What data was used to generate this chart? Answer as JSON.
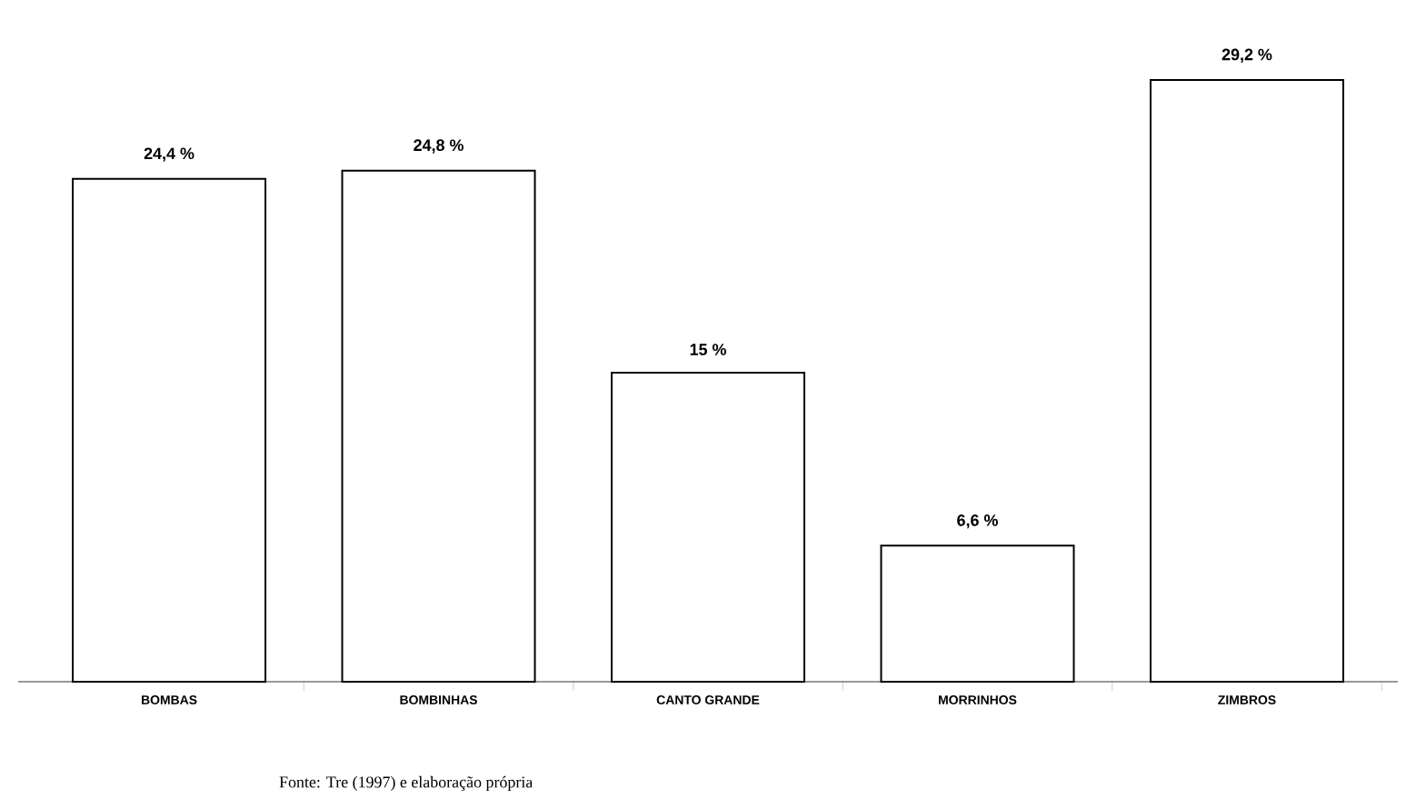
{
  "chart_data": {
    "type": "bar",
    "categories": [
      "BOMBAS",
      "BOMBINHAS",
      "CANTO GRANDE",
      "MORRINHOS",
      "ZIMBROS"
    ],
    "values": [
      24.4,
      24.8,
      15,
      6.6,
      29.2
    ],
    "value_labels": [
      "24,4 %",
      "24,8 %",
      "15 %",
      "6,6 %",
      "29,2 %"
    ],
    "color": "#ffffff",
    "annotations": [
      "Fonte: Tre (1997) e elaboração própria"
    ]
  }
}
